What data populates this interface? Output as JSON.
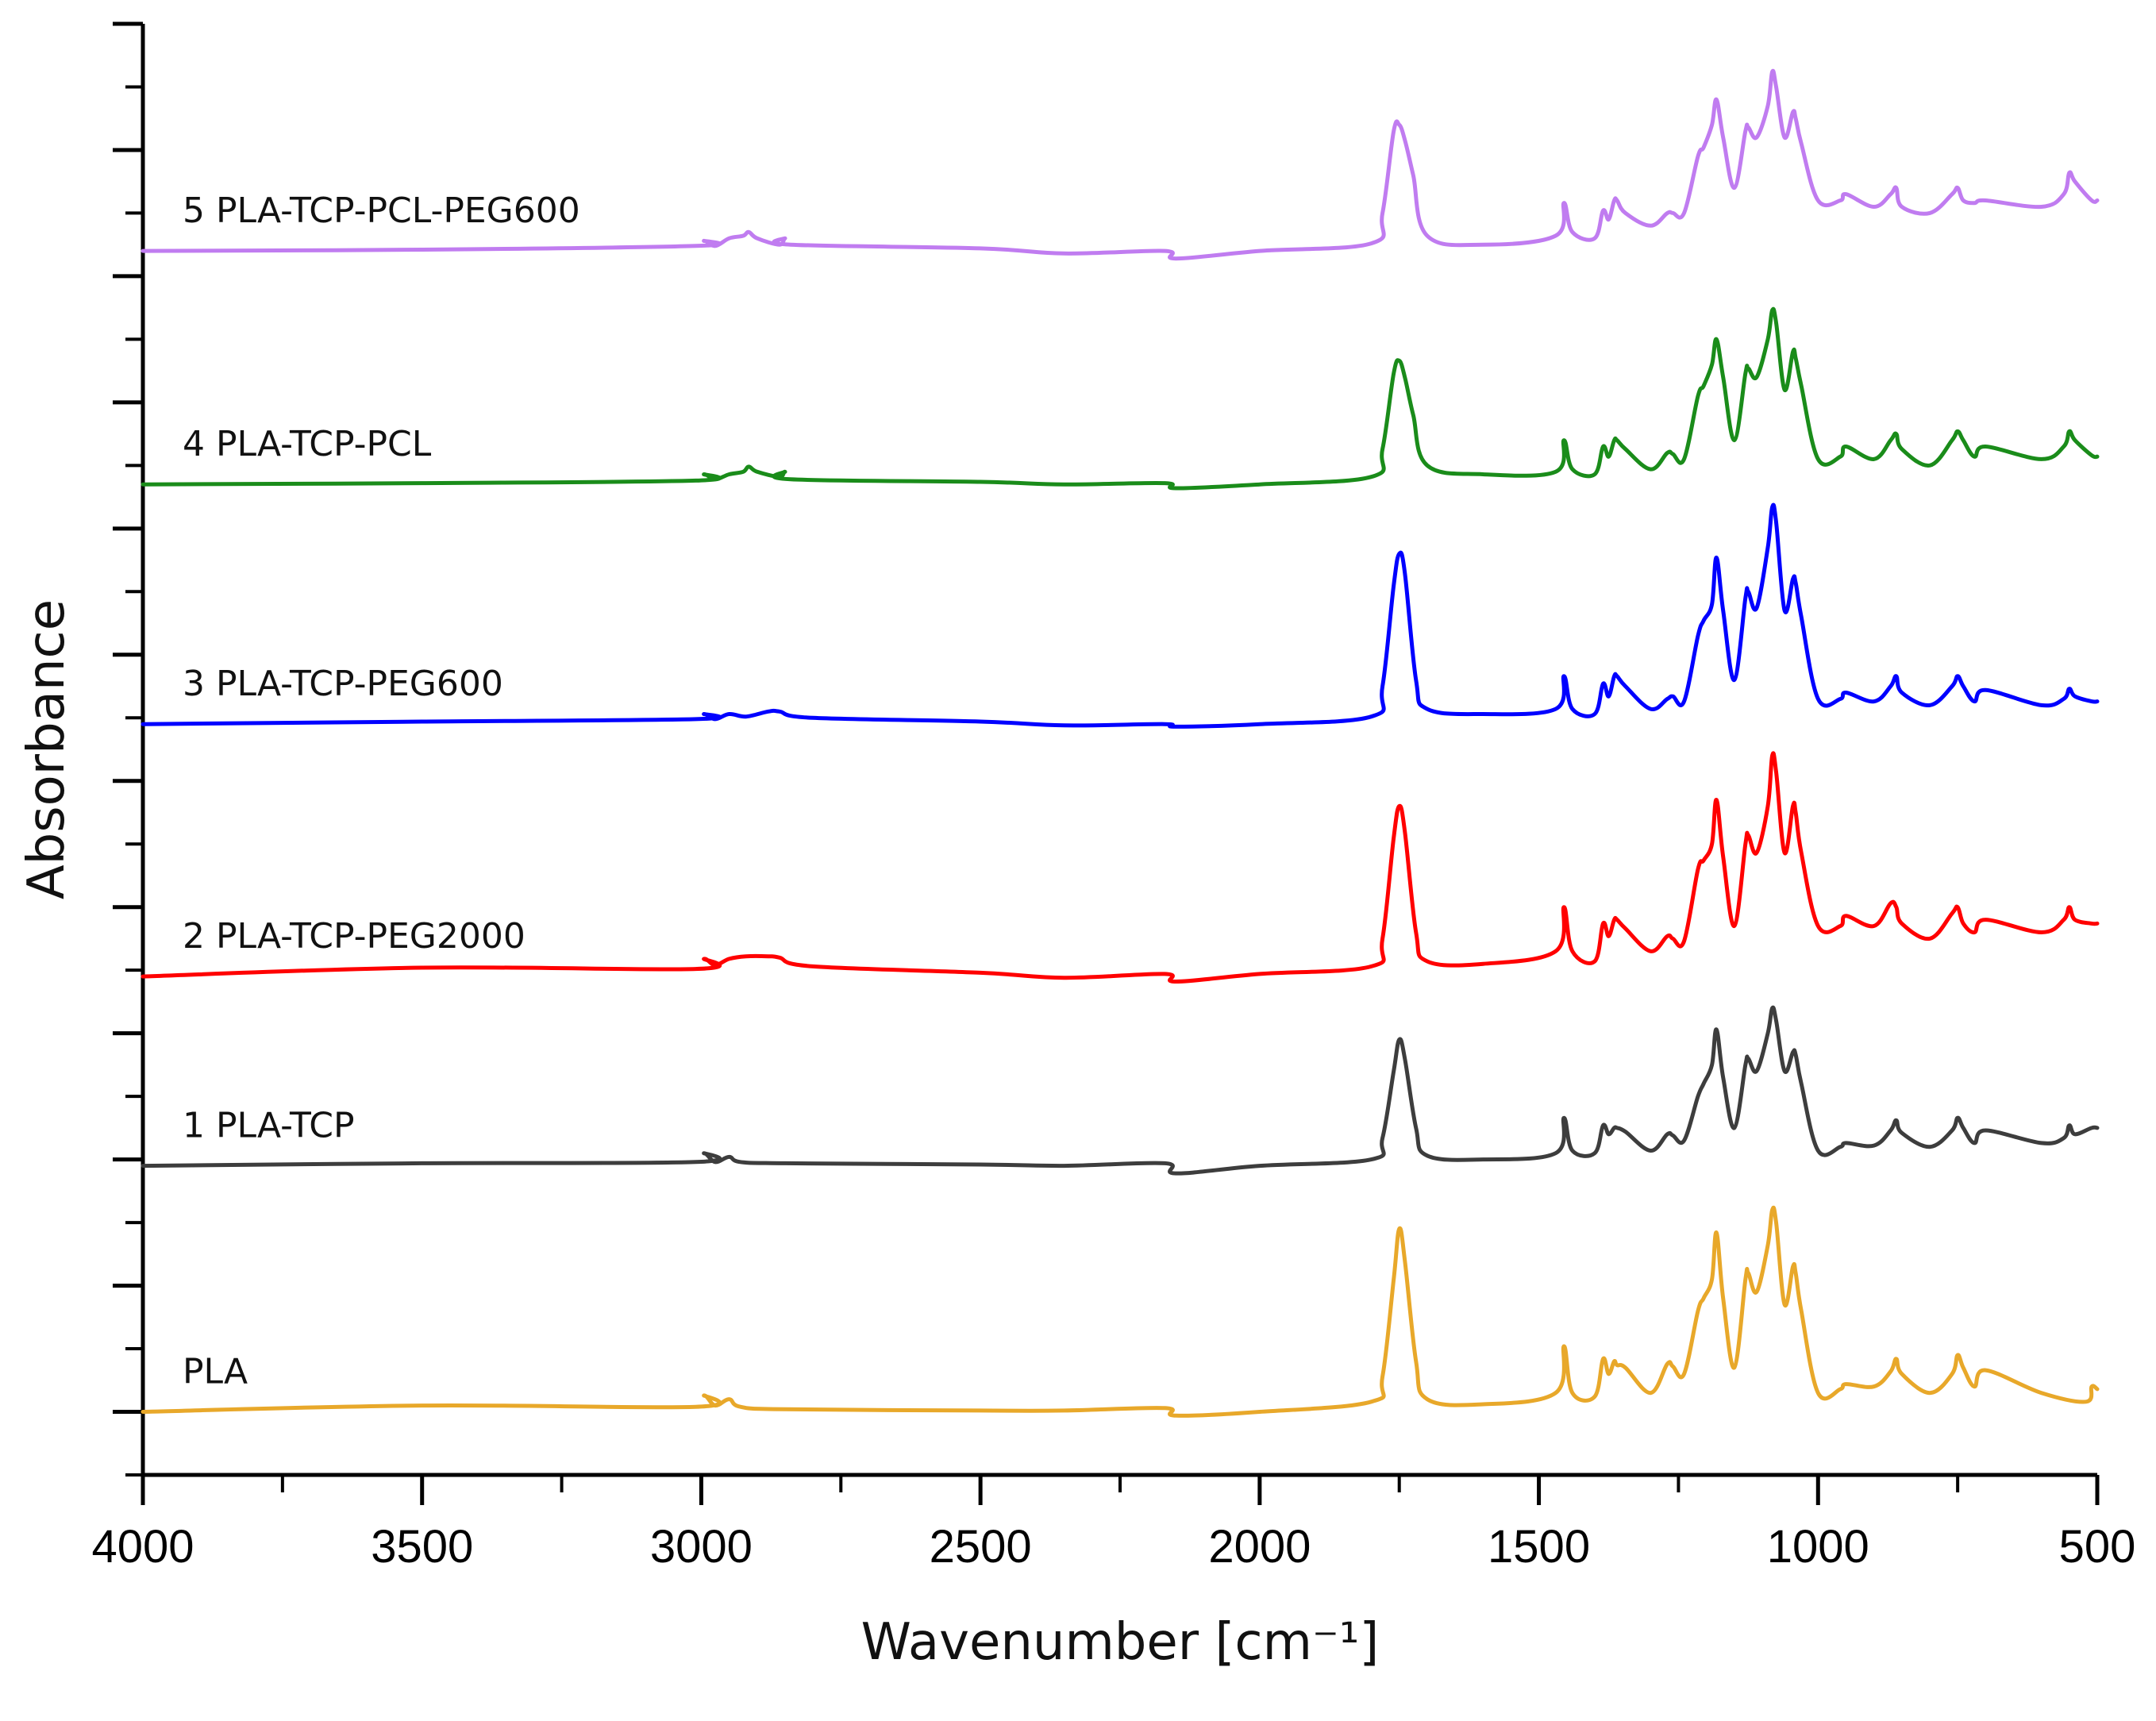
{
  "chart_data": {
    "type": "line",
    "title": "",
    "xlabel": "Wavenumber [cm⁻¹]",
    "ylabel": "Absorbance",
    "xlim": [
      4000,
      500
    ],
    "x_reversed": true,
    "ylim": [
      -0.5,
      11.0
    ],
    "x_ticks": [
      4000,
      3500,
      3000,
      2500,
      2000,
      1500,
      1000,
      500
    ],
    "x_tick_labels": [
      "4000",
      "3500",
      "3000",
      "2500",
      "2000",
      "1500",
      "1000",
      "500"
    ],
    "y_ticks_major": [
      0,
      1,
      2,
      3,
      4,
      5,
      6,
      7,
      8,
      9,
      10,
      11
    ],
    "y_tick_labels_shown": false,
    "grid": false,
    "legend": "inline labels above each trace",
    "series": [
      {
        "name": "PLA",
        "label": "PLA",
        "color": "#e8a82a",
        "baseline": 0.0,
        "x": [
          4000,
          3500,
          3010,
          2995,
          2975,
          2950,
          2930,
          2850,
          2500,
          2350,
          2170,
          2150,
          2000,
          1800,
          1780,
          1760,
          1750,
          1740,
          1720,
          1700,
          1600,
          1470,
          1455,
          1440,
          1400,
          1385,
          1375,
          1365,
          1360,
          1345,
          1300,
          1270,
          1260,
          1240,
          1215,
          1205,
          1190,
          1182,
          1170,
          1150,
          1130,
          1125,
          1110,
          1090,
          1082,
          1075,
          1060,
          1045,
          1040,
          1030,
          1000,
          960,
          950,
          900,
          870,
          860,
          850,
          800,
          760,
          750,
          740,
          720,
          700,
          600,
          520,
          510,
          500
        ],
        "y": [
          0,
          0.05,
          0.04,
          0.13,
          0.05,
          0.1,
          0.04,
          0.02,
          0.01,
          0.01,
          0.03,
          -0.03,
          0,
          0.08,
          0.28,
          1.05,
          1.45,
          1.2,
          0.4,
          0.1,
          0.06,
          0.15,
          0.52,
          0.15,
          0.12,
          0.42,
          0.3,
          0.4,
          0.37,
          0.35,
          0.15,
          0.38,
          0.36,
          0.3,
          0.8,
          0.9,
          1.05,
          1.42,
          0.9,
          0.35,
          1.05,
          1.1,
          0.95,
          1.32,
          1.6,
          1.5,
          0.85,
          1.15,
          1.1,
          0.8,
          0.15,
          0.18,
          0.22,
          0.2,
          0.32,
          0.42,
          0.3,
          0.15,
          0.3,
          0.45,
          0.35,
          0.2,
          0.33,
          0.15,
          0.08,
          0.2,
          0.18
        ]
      },
      {
        "name": "1 PLA-TCP",
        "label": "1 PLA-TCP",
        "color": "#3d3d3d",
        "baseline": 1.95,
        "x": [
          4000,
          3500,
          3010,
          2995,
          2975,
          2950,
          2930,
          2850,
          2500,
          2350,
          2170,
          2150,
          2000,
          1800,
          1780,
          1760,
          1750,
          1740,
          1720,
          1700,
          1600,
          1470,
          1455,
          1440,
          1400,
          1385,
          1375,
          1365,
          1360,
          1345,
          1300,
          1270,
          1260,
          1240,
          1215,
          1205,
          1190,
          1182,
          1170,
          1150,
          1130,
          1125,
          1110,
          1090,
          1082,
          1075,
          1060,
          1045,
          1040,
          1030,
          1000,
          960,
          950,
          900,
          870,
          860,
          850,
          800,
          760,
          750,
          740,
          720,
          700,
          600,
          560,
          550,
          540,
          510,
          500
        ],
        "y": [
          0,
          0.02,
          0.03,
          0.1,
          0.03,
          0.07,
          0.03,
          0.02,
          0.01,
          0.0,
          0.02,
          -0.06,
          0,
          0.05,
          0.22,
          0.75,
          1.0,
          0.85,
          0.3,
          0.08,
          0.05,
          0.1,
          0.38,
          0.12,
          0.1,
          0.32,
          0.25,
          0.3,
          0.3,
          0.27,
          0.12,
          0.25,
          0.24,
          0.2,
          0.55,
          0.65,
          0.8,
          1.08,
          0.7,
          0.3,
          0.8,
          0.85,
          0.75,
          1.05,
          1.25,
          1.15,
          0.75,
          0.9,
          0.88,
          0.65,
          0.12,
          0.15,
          0.18,
          0.16,
          0.28,
          0.36,
          0.26,
          0.15,
          0.28,
          0.38,
          0.3,
          0.18,
          0.28,
          0.18,
          0.22,
          0.32,
          0.25,
          0.3,
          0.3
        ]
      },
      {
        "name": "2 PLA-TCP-PEG2000",
        "label": "2 PLA-TCP-PEG2000",
        "color": "#ff0000",
        "baseline": 3.45,
        "x": [
          4000,
          3500,
          3010,
          2995,
          2975,
          2950,
          2920,
          2880,
          2860,
          2800,
          2500,
          2350,
          2170,
          2150,
          2000,
          1800,
          1780,
          1760,
          1750,
          1740,
          1720,
          1700,
          1600,
          1470,
          1455,
          1440,
          1400,
          1385,
          1375,
          1365,
          1360,
          1345,
          1300,
          1270,
          1260,
          1240,
          1215,
          1205,
          1190,
          1182,
          1170,
          1150,
          1130,
          1125,
          1110,
          1090,
          1082,
          1075,
          1060,
          1045,
          1040,
          1030,
          1000,
          960,
          950,
          900,
          870,
          860,
          850,
          800,
          760,
          750,
          740,
          720,
          700,
          600,
          560,
          550,
          540,
          510,
          500
        ],
        "y": [
          0,
          0.07,
          0.06,
          0.14,
          0.09,
          0.14,
          0.16,
          0.16,
          0.15,
          0.08,
          0.03,
          -0.01,
          0.02,
          -0.04,
          0.02,
          0.08,
          0.3,
          1.1,
          1.35,
          1.15,
          0.35,
          0.12,
          0.1,
          0.2,
          0.55,
          0.2,
          0.12,
          0.42,
          0.32,
          0.45,
          0.45,
          0.38,
          0.2,
          0.32,
          0.3,
          0.28,
          0.85,
          0.92,
          1.05,
          1.4,
          0.95,
          0.4,
          1.05,
          1.12,
          0.98,
          1.35,
          1.75,
          1.62,
          0.98,
          1.35,
          1.3,
          0.98,
          0.4,
          0.4,
          0.48,
          0.4,
          0.58,
          0.55,
          0.42,
          0.3,
          0.5,
          0.55,
          0.42,
          0.35,
          0.45,
          0.35,
          0.45,
          0.55,
          0.45,
          0.42,
          0.42
        ]
      },
      {
        "name": "3 PLA-TCP-PEG600",
        "label": "3 PLA-TCP-PEG600",
        "color": "#0000ff",
        "baseline": 5.45,
        "x": [
          4000,
          3500,
          3010,
          2995,
          2975,
          2950,
          2920,
          2880,
          2860,
          2800,
          2500,
          2350,
          2170,
          2150,
          2000,
          1800,
          1780,
          1760,
          1750,
          1740,
          1720,
          1700,
          1600,
          1470,
          1455,
          1440,
          1400,
          1385,
          1375,
          1365,
          1360,
          1345,
          1300,
          1270,
          1260,
          1240,
          1215,
          1205,
          1190,
          1182,
          1170,
          1150,
          1130,
          1125,
          1110,
          1090,
          1082,
          1075,
          1060,
          1045,
          1040,
          1030,
          1000,
          960,
          950,
          900,
          870,
          860,
          850,
          800,
          760,
          750,
          740,
          720,
          700,
          600,
          560,
          550,
          540,
          510,
          500
        ],
        "y": [
          0,
          0.02,
          0.04,
          0.08,
          0.04,
          0.08,
          0.06,
          0.1,
          0.1,
          0.05,
          0.02,
          -0.01,
          0.0,
          -0.02,
          0.0,
          0.06,
          0.3,
          1.1,
          1.35,
          1.2,
          0.35,
          0.12,
          0.08,
          0.12,
          0.38,
          0.12,
          0.08,
          0.32,
          0.22,
          0.38,
          0.38,
          0.3,
          0.12,
          0.2,
          0.22,
          0.18,
          0.7,
          0.82,
          0.95,
          1.32,
          0.9,
          0.35,
          1.0,
          1.05,
          0.92,
          1.4,
          1.72,
          1.6,
          0.9,
          1.15,
          1.12,
          0.85,
          0.2,
          0.2,
          0.25,
          0.18,
          0.3,
          0.38,
          0.25,
          0.15,
          0.3,
          0.38,
          0.3,
          0.18,
          0.27,
          0.15,
          0.2,
          0.28,
          0.22,
          0.18,
          0.18
        ]
      },
      {
        "name": "4 PLA-TCP-PCL",
        "label": "4 PLA-TCP-PCL",
        "color": "#1a8c1a",
        "baseline": 7.35,
        "x": [
          4000,
          3500,
          3010,
          2995,
          2975,
          2950,
          2925,
          2915,
          2900,
          2860,
          2850,
          2840,
          2500,
          2350,
          2170,
          2150,
          2000,
          1800,
          1780,
          1760,
          1750,
          1740,
          1725,
          1700,
          1600,
          1470,
          1455,
          1440,
          1400,
          1385,
          1375,
          1365,
          1360,
          1345,
          1300,
          1270,
          1260,
          1240,
          1215,
          1205,
          1190,
          1182,
          1170,
          1150,
          1130,
          1125,
          1110,
          1090,
          1082,
          1075,
          1060,
          1045,
          1040,
          1030,
          1000,
          960,
          950,
          900,
          870,
          860,
          850,
          800,
          760,
          750,
          740,
          720,
          700,
          600,
          560,
          550,
          540,
          510,
          500
        ],
        "y": [
          0,
          0.01,
          0.03,
          0.08,
          0.04,
          0.08,
          0.1,
          0.14,
          0.1,
          0.06,
          0.1,
          0.04,
          0.02,
          0.0,
          0.01,
          -0.03,
          0.0,
          0.06,
          0.28,
          0.88,
          0.98,
          0.85,
          0.55,
          0.15,
          0.08,
          0.1,
          0.35,
          0.12,
          0.08,
          0.3,
          0.22,
          0.35,
          0.35,
          0.28,
          0.12,
          0.25,
          0.24,
          0.2,
          0.7,
          0.78,
          0.95,
          1.15,
          0.85,
          0.35,
          0.88,
          0.92,
          0.85,
          1.15,
          1.38,
          1.28,
          0.75,
          1.05,
          1.0,
          0.78,
          0.2,
          0.22,
          0.3,
          0.2,
          0.35,
          0.4,
          0.28,
          0.15,
          0.35,
          0.42,
          0.35,
          0.22,
          0.3,
          0.2,
          0.3,
          0.42,
          0.35,
          0.23,
          0.22
        ]
      },
      {
        "name": "5 PLA-TCP-PCL-PEG600",
        "label": "5 PLA-TCP-PCL-PEG600",
        "color": "#c07cf0",
        "baseline": 9.2,
        "x": [
          4000,
          3500,
          3010,
          2995,
          2975,
          2950,
          2925,
          2915,
          2900,
          2860,
          2850,
          2840,
          2500,
          2350,
          2170,
          2150,
          2000,
          1800,
          1780,
          1760,
          1750,
          1740,
          1725,
          1700,
          1600,
          1470,
          1455,
          1440,
          1400,
          1385,
          1375,
          1365,
          1360,
          1345,
          1300,
          1270,
          1260,
          1240,
          1215,
          1205,
          1190,
          1182,
          1170,
          1150,
          1130,
          1125,
          1110,
          1090,
          1082,
          1075,
          1060,
          1045,
          1040,
          1030,
          1000,
          960,
          950,
          900,
          870,
          860,
          850,
          800,
          760,
          750,
          740,
          720,
          700,
          600,
          560,
          550,
          540,
          510,
          500
        ],
        "y": [
          0,
          0.01,
          0.04,
          0.08,
          0.04,
          0.1,
          0.12,
          0.15,
          0.1,
          0.05,
          0.1,
          0.05,
          0.02,
          -0.02,
          0.0,
          -0.06,
          0.0,
          0.06,
          0.3,
          0.95,
          1.0,
          0.88,
          0.6,
          0.12,
          0.05,
          0.12,
          0.38,
          0.15,
          0.1,
          0.32,
          0.25,
          0.4,
          0.4,
          0.3,
          0.2,
          0.3,
          0.3,
          0.3,
          0.75,
          0.82,
          1.0,
          1.2,
          0.9,
          0.5,
          0.95,
          0.98,
          0.9,
          1.15,
          1.42,
          1.3,
          0.9,
          1.1,
          1.05,
          0.85,
          0.4,
          0.4,
          0.45,
          0.35,
          0.45,
          0.5,
          0.35,
          0.3,
          0.45,
          0.5,
          0.4,
          0.38,
          0.4,
          0.35,
          0.45,
          0.62,
          0.55,
          0.4,
          0.4
        ]
      }
    ]
  }
}
